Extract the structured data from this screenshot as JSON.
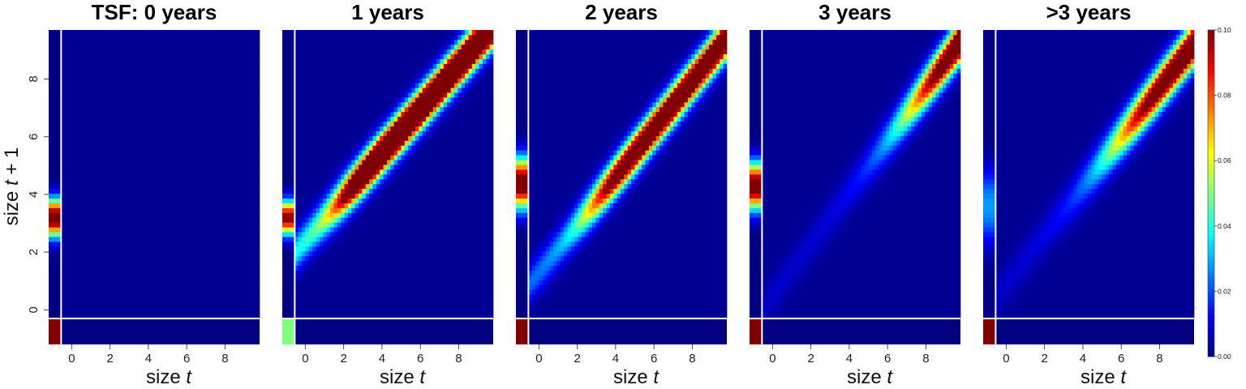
{
  "chart_data": {
    "type": "heatmap",
    "panel_titles": [
      "TSF: 0 years",
      "1 years",
      "2 years",
      "3 years",
      ">3 years"
    ],
    "xlabel": {
      "prefix": "size ",
      "var": "t",
      "suffix": ""
    },
    "ylabel": {
      "prefix": "size ",
      "var": "t",
      "suffix": " + 1"
    },
    "xlim": [
      -1.2,
      9.8
    ],
    "ylim": [
      -1.2,
      9.7
    ],
    "x_ticks": [
      "0",
      "2",
      "4",
      "6",
      "8"
    ],
    "x_tick_values": [
      0,
      2,
      4,
      6,
      8
    ],
    "y_ticks": [
      "0",
      "2",
      "4",
      "6",
      "8"
    ],
    "y_tick_values": [
      0,
      2,
      4,
      6,
      8
    ],
    "colorbar": {
      "min": 0.0,
      "max": 0.1,
      "tick_labels": [
        "0.00",
        "0.02",
        "0.04",
        "0.06",
        "0.08",
        "0.10"
      ],
      "tick_values": [
        0.0,
        0.02,
        0.04,
        0.06,
        0.08,
        0.1
      ],
      "colormap": "jet"
    },
    "panels": [
      {
        "title": "TSF: 0 years",
        "recruit_column": {
          "center": 3.2,
          "sd": 0.45,
          "peak": 0.11
        },
        "corner_cell": 0.1,
        "growth": {
          "shown": false
        }
      },
      {
        "title": "1 years",
        "recruit_column": {
          "center": 3.2,
          "sd": 0.4,
          "peak": 0.1
        },
        "corner_cell": 0.05,
        "growth": {
          "shown": true,
          "intercept": 2.4,
          "slope": 0.76,
          "sd": 0.45,
          "amp_low": 0.035,
          "amp_high": 0.17,
          "amp_midpoint": 2.0,
          "amp_rate": 1.6
        }
      },
      {
        "title": "2 years",
        "recruit_column": {
          "center": 4.4,
          "sd": 0.6,
          "peak": 0.11
        },
        "corner_cell": 0.1,
        "growth": {
          "shown": true,
          "intercept": 1.3,
          "slope": 0.83,
          "sd": 0.45,
          "amp_low": 0.02,
          "amp_high": 0.14,
          "amp_midpoint": 3.0,
          "amp_rate": 1.3
        }
      },
      {
        "title": "3 years",
        "recruit_column": {
          "center": 4.3,
          "sd": 0.55,
          "peak": 0.11
        },
        "corner_cell": 0.1,
        "growth": {
          "shown": true,
          "intercept": 0.5,
          "slope": 0.9,
          "sd": 0.48,
          "amp_low": 0.005,
          "amp_high": 0.16,
          "amp_midpoint": 7.8,
          "amp_rate": 0.9
        }
      },
      {
        "title": ">3 years",
        "recruit_column": {
          "center": 3.6,
          "sd": 0.9,
          "peak": 0.028
        },
        "corner_cell": 0.1,
        "growth": {
          "shown": true,
          "intercept": 0.9,
          "slope": 0.85,
          "sd": 0.5,
          "amp_low": 0.005,
          "amp_high": 0.14,
          "amp_midpoint": 6.2,
          "amp_rate": 0.9
        }
      }
    ]
  }
}
